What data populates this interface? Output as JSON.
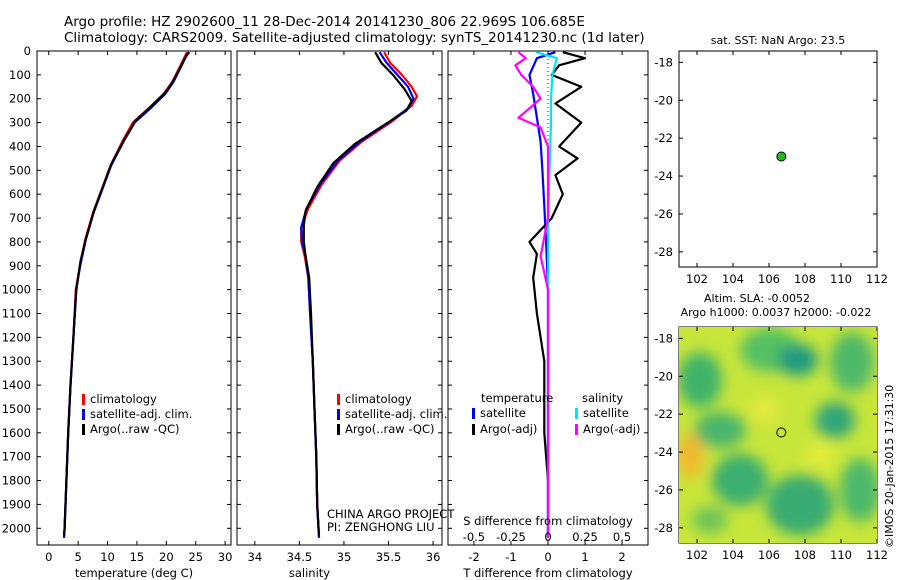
{
  "title_line1": "Argo profile: HZ 2902600_11 28-Dec-2014 20141230_806 22.969S 106.685E",
  "title_line2": "Climatology: CARS2009. Satellite-adjusted climatology: synTS_20141230.nc (1d later)",
  "credit": "CHINA ARGO PROJECT\nPI: ZENGHONG LIU",
  "watermark": "©IMOS 20-Jan-2015 17:31:30",
  "colors": {
    "climatology": "#ff0000",
    "satellite": "#0000ff",
    "argo": "#000000",
    "satellite_s": "#00e5ee",
    "argo_s": "#ff00ff",
    "marker": "#22bb22"
  },
  "chart_data": [
    {
      "type": "line",
      "xlabel": "temperature (deg C)",
      "xlim": [
        -2,
        31
      ],
      "xticks": [
        "0",
        "5",
        "10",
        "15",
        "20",
        "25",
        "30"
      ],
      "ylim": [
        0,
        2070
      ],
      "yticks": [
        "0",
        "100",
        "200",
        "300",
        "400",
        "500",
        "600",
        "700",
        "800",
        "900",
        "1000",
        "1100",
        "1200",
        "1300",
        "1400",
        "1500",
        "1600",
        "1700",
        "1800",
        "1900",
        "2000"
      ],
      "y_inverted": true,
      "legend": [
        "climatology",
        "satellite-adj. clim.",
        "Argo(..raw -QC)"
      ],
      "legend_position": "lower-right",
      "series": [
        {
          "name": "climatology",
          "color": "#ff0000",
          "points": [
            [
              23.5,
              5
            ],
            [
              23.0,
              30
            ],
            [
              22.0,
              80
            ],
            [
              21.0,
              130
            ],
            [
              19.5,
              180
            ],
            [
              17.0,
              240
            ],
            [
              14.3,
              300
            ],
            [
              12.5,
              380
            ],
            [
              10.5,
              480
            ],
            [
              9.0,
              580
            ],
            [
              7.5,
              680
            ],
            [
              6.2,
              790
            ],
            [
              5.3,
              900
            ],
            [
              4.6,
              1000
            ],
            [
              4.2,
              1200
            ],
            [
              3.7,
              1400
            ],
            [
              3.3,
              1600
            ],
            [
              3.0,
              1800
            ],
            [
              2.7,
              2000
            ],
            [
              2.6,
              2040
            ]
          ]
        },
        {
          "name": "satellite-adj. clim.",
          "color": "#0000ff",
          "points": [
            [
              23.8,
              5
            ],
            [
              23.2,
              30
            ],
            [
              22.2,
              80
            ],
            [
              21.2,
              130
            ],
            [
              19.8,
              180
            ],
            [
              17.3,
              240
            ],
            [
              14.6,
              300
            ],
            [
              12.7,
              380
            ],
            [
              10.6,
              480
            ],
            [
              9.1,
              580
            ],
            [
              7.6,
              680
            ],
            [
              6.3,
              790
            ],
            [
              5.35,
              900
            ],
            [
              4.65,
              1000
            ],
            [
              4.2,
              1200
            ],
            [
              3.7,
              1400
            ],
            [
              3.3,
              1600
            ],
            [
              3.0,
              1800
            ],
            [
              2.7,
              2000
            ],
            [
              2.6,
              2040
            ]
          ]
        },
        {
          "name": "Argo(..raw -QC)",
          "color": "#000000",
          "points": [
            [
              23.9,
              5
            ],
            [
              23.4,
              20
            ],
            [
              22.4,
              70
            ],
            [
              21.3,
              120
            ],
            [
              20.0,
              170
            ],
            [
              17.5,
              230
            ],
            [
              14.8,
              290
            ],
            [
              12.9,
              370
            ],
            [
              10.7,
              470
            ],
            [
              9.2,
              570
            ],
            [
              7.7,
              670
            ],
            [
              6.3,
              790
            ],
            [
              5.4,
              880
            ],
            [
              4.7,
              1000
            ],
            [
              4.2,
              1200
            ],
            [
              3.7,
              1400
            ],
            [
              3.3,
              1600
            ],
            [
              3.0,
              1800
            ],
            [
              2.7,
              2000
            ],
            [
              2.6,
              2030
            ]
          ]
        }
      ]
    },
    {
      "type": "line",
      "xlabel": "salinity",
      "xlim": [
        33.8,
        36.1
      ],
      "xticks": [
        "34",
        "34.5",
        "35",
        "35.5",
        "36"
      ],
      "ylim": [
        0,
        2070
      ],
      "y_inverted": true,
      "legend": [
        "climatology",
        "satellite-adj. clim.",
        "Argo(..raw -QC)"
      ],
      "legend_position": "lower-right",
      "series": [
        {
          "name": "climatology",
          "color": "#ff0000",
          "points": [
            [
              35.45,
              5
            ],
            [
              35.52,
              50
            ],
            [
              35.65,
              100
            ],
            [
              35.76,
              150
            ],
            [
              35.82,
              190
            ],
            [
              35.76,
              230
            ],
            [
              35.52,
              300
            ],
            [
              35.2,
              380
            ],
            [
              34.95,
              460
            ],
            [
              34.75,
              560
            ],
            [
              34.6,
              660
            ],
            [
              34.52,
              740
            ],
            [
              34.52,
              800
            ],
            [
              34.56,
              860
            ],
            [
              34.6,
              950
            ],
            [
              34.62,
              1100
            ],
            [
              34.65,
              1300
            ],
            [
              34.67,
              1500
            ],
            [
              34.69,
              1700
            ],
            [
              34.7,
              1900
            ],
            [
              34.72,
              2040
            ]
          ]
        },
        {
          "name": "satellite-adj. clim.",
          "color": "#0000ff",
          "points": [
            [
              35.4,
              5
            ],
            [
              35.48,
              50
            ],
            [
              35.6,
              100
            ],
            [
              35.72,
              150
            ],
            [
              35.78,
              200
            ],
            [
              35.72,
              240
            ],
            [
              35.5,
              300
            ],
            [
              35.18,
              380
            ],
            [
              34.93,
              460
            ],
            [
              34.73,
              560
            ],
            [
              34.58,
              660
            ],
            [
              34.52,
              740
            ],
            [
              34.53,
              800
            ],
            [
              34.57,
              860
            ],
            [
              34.6,
              950
            ],
            [
              34.62,
              1100
            ],
            [
              34.65,
              1300
            ],
            [
              34.67,
              1500
            ],
            [
              34.69,
              1700
            ],
            [
              34.7,
              1900
            ],
            [
              34.72,
              2040
            ]
          ]
        },
        {
          "name": "Argo(..raw -QC)",
          "color": "#000000",
          "points": [
            [
              35.35,
              5
            ],
            [
              35.42,
              50
            ],
            [
              35.55,
              100
            ],
            [
              35.68,
              160
            ],
            [
              35.76,
              210
            ],
            [
              35.7,
              250
            ],
            [
              35.45,
              310
            ],
            [
              35.12,
              390
            ],
            [
              34.88,
              470
            ],
            [
              34.7,
              570
            ],
            [
              34.57,
              670
            ],
            [
              34.55,
              730
            ],
            [
              34.55,
              800
            ],
            [
              34.57,
              860
            ],
            [
              34.61,
              950
            ],
            [
              34.63,
              1100
            ],
            [
              34.65,
              1300
            ],
            [
              34.67,
              1500
            ],
            [
              34.69,
              1700
            ],
            [
              34.7,
              1900
            ],
            [
              34.72,
              2030
            ]
          ]
        }
      ]
    },
    {
      "type": "line",
      "xlabel": "T difference from climatology",
      "xlabel_top": "S difference from climatology",
      "xlim": [
        -2.7,
        2.7
      ],
      "xticks": [
        "-2",
        "-1",
        "0",
        "1",
        "2"
      ],
      "xticks_top": [
        "-0.5",
        "-0.25",
        "0",
        "0.25",
        "0.5"
      ],
      "ylim": [
        0,
        2070
      ],
      "y_inverted": true,
      "legend_groups": [
        {
          "heading": "temperature",
          "items": [
            "satellite",
            "Argo(-adj)"
          ]
        },
        {
          "heading": "salinity",
          "items": [
            "satellite",
            "Argo(-adj)"
          ]
        }
      ],
      "series": [
        {
          "name": "temperature satellite",
          "color": "#0000ff",
          "points": [
            [
              0.2,
              5
            ],
            [
              -0.3,
              30
            ],
            [
              -0.5,
              100
            ],
            [
              -0.4,
              180
            ],
            [
              -0.3,
              280
            ],
            [
              -0.2,
              380
            ],
            [
              -0.15,
              500
            ],
            [
              -0.1,
              650
            ],
            [
              -0.05,
              800
            ],
            [
              0,
              1000
            ],
            [
              0,
              1500
            ],
            [
              0,
              2040
            ]
          ]
        },
        {
          "name": "temperature Argo(-adj)",
          "color": "#000000",
          "points": [
            [
              0.4,
              5
            ],
            [
              1.0,
              30
            ],
            [
              0.3,
              60
            ],
            [
              0.1,
              100
            ],
            [
              0.9,
              150
            ],
            [
              0.2,
              220
            ],
            [
              0.9,
              300
            ],
            [
              0.3,
              400
            ],
            [
              0.8,
              450
            ],
            [
              0.2,
              520
            ],
            [
              0.4,
              600
            ],
            [
              0.1,
              700
            ],
            [
              -0.5,
              800
            ],
            [
              -0.3,
              850
            ],
            [
              -0.4,
              950
            ],
            [
              -0.3,
              1100
            ],
            [
              -0.1,
              1300
            ],
            [
              -0.1,
              1600
            ],
            [
              0,
              1800
            ],
            [
              0,
              2030
            ]
          ]
        },
        {
          "name": "salinity satellite",
          "color": "#00e5ee",
          "points": [
            [
              -0.08,
              5
            ],
            [
              0.06,
              30
            ],
            [
              0.03,
              100
            ],
            [
              0.02,
              200
            ],
            [
              0.02,
              300
            ],
            [
              0.01,
              500
            ],
            [
              0,
              700
            ],
            [
              0,
              1000
            ],
            [
              0,
              1500
            ],
            [
              0,
              2040
            ]
          ]
        },
        {
          "name": "salinity Argo(-adj)",
          "color": "#ff00ff",
          "points": [
            [
              -0.2,
              5
            ],
            [
              -0.15,
              30
            ],
            [
              -0.22,
              60
            ],
            [
              -0.18,
              100
            ],
            [
              -0.1,
              150
            ],
            [
              -0.05,
              200
            ],
            [
              -0.2,
              280
            ],
            [
              -0.05,
              320
            ],
            [
              0,
              400
            ],
            [
              0,
              700
            ],
            [
              -0.05,
              860
            ],
            [
              0,
              1000
            ],
            [
              0,
              1500
            ],
            [
              0,
              2040
            ]
          ]
        }
      ]
    },
    {
      "type": "scatter",
      "title": "sat. SST: NaN Argo: 23.5",
      "xlim": [
        101,
        112
      ],
      "ylim": [
        -28.8,
        -17.4
      ],
      "xticks": [
        "102",
        "104",
        "106",
        "108",
        "110",
        "112"
      ],
      "yticks": [
        "-18",
        "-20",
        "-22",
        "-24",
        "-26",
        "-28"
      ],
      "points": [
        [
          106.685,
          -22.969
        ]
      ]
    },
    {
      "type": "heatmap",
      "title_line1": "Altim. SLA: -0.0052",
      "title_line2": "Argo h1000: 0.0037 h2000: -0.022",
      "xlim": [
        101,
        112
      ],
      "ylim": [
        -28.8,
        -17.4
      ],
      "xticks": [
        "102",
        "104",
        "106",
        "108",
        "110",
        "112"
      ],
      "yticks": [
        "-18",
        "-20",
        "-22",
        "-24",
        "-26",
        "-28"
      ],
      "points": [
        [
          106.685,
          -22.969
        ]
      ]
    }
  ]
}
